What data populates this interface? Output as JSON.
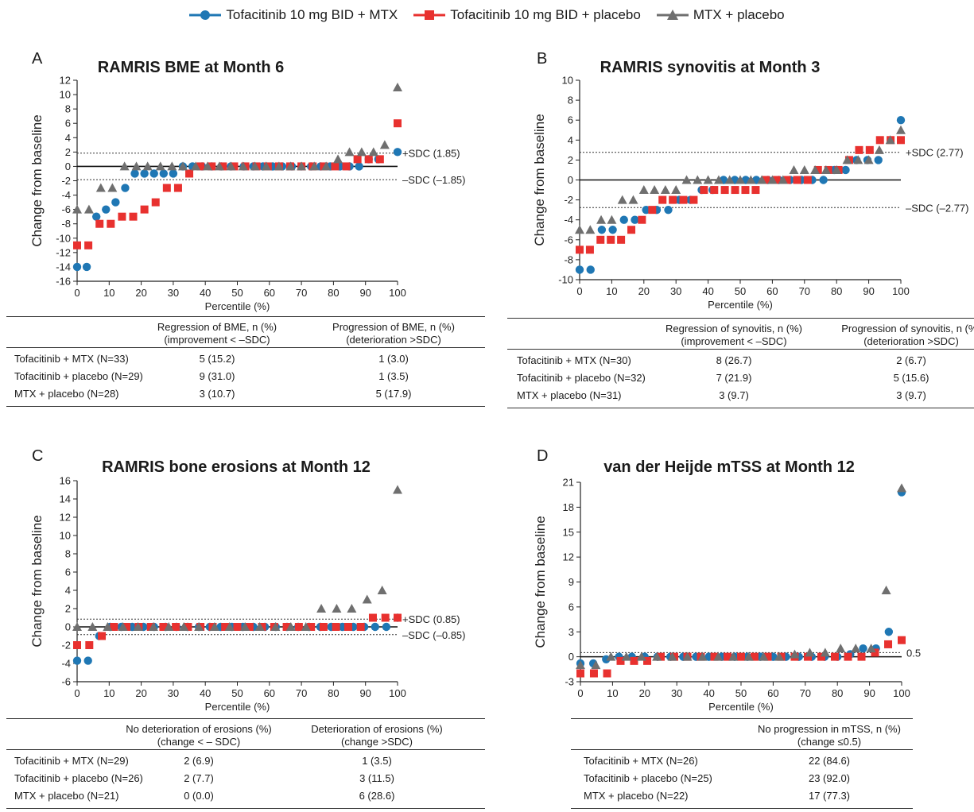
{
  "legend": [
    {
      "label": "Tofacitinib 10 mg BID + MTX",
      "color": "#1f77b4",
      "marker": "circle"
    },
    {
      "label": "Tofacitinib 10 mg BID + placebo",
      "color": "#e8312f",
      "marker": "square"
    },
    {
      "label": "MTX + placebo",
      "color": "#6f6f6f",
      "marker": "triangle"
    }
  ],
  "colors": {
    "tofa_mtx": "#1f77b4",
    "tofa_placebo": "#e8312f",
    "mtx_placebo": "#6f6f6f"
  },
  "chart_data": [
    {
      "type": "scatter",
      "panel_letter": "A",
      "title": "RAMRIS BME at Month 6",
      "xlabel": "Percentile (%)",
      "ylabel": "Change from baseline",
      "xlim": [
        0,
        100
      ],
      "ylim": [
        -16,
        12
      ],
      "xticks": [
        0,
        10,
        20,
        30,
        40,
        50,
        60,
        70,
        80,
        90,
        100
      ],
      "yticks": [
        -16,
        -14,
        -12,
        -10,
        -8,
        -6,
        -4,
        -2,
        0,
        2,
        4,
        6,
        8,
        10,
        12
      ],
      "reference_lines": [
        {
          "y": 1.85,
          "label": "+SDC (1.85)",
          "style": "dotted"
        },
        {
          "y": -1.85,
          "label": "–SDC (–1.85)",
          "style": "dotted"
        }
      ],
      "series": [
        {
          "name": "Tofacitinib 10 mg BID + MTX",
          "marker": "circle",
          "x": [
            0,
            3,
            6,
            9,
            12,
            15,
            18,
            21,
            24,
            27,
            30,
            33,
            36,
            39,
            42,
            45,
            48,
            52,
            55,
            58,
            61,
            64,
            67,
            70,
            73,
            76,
            79,
            82,
            85,
            88,
            91,
            94,
            100
          ],
          "y": [
            -14,
            -14,
            -7,
            -6,
            -5,
            -3,
            -1,
            -1,
            -1,
            -1,
            -1,
            0,
            0,
            0,
            0,
            0,
            0,
            0,
            0,
            0,
            0,
            0,
            0,
            0,
            0,
            0,
            0,
            0,
            0,
            0,
            1,
            1,
            2
          ]
        },
        {
          "name": "Tofacitinib 10 mg BID + placebo",
          "marker": "square",
          "x": [
            0,
            3.5,
            7,
            10.5,
            14,
            17.5,
            21,
            24.5,
            28,
            31.5,
            35,
            38.5,
            42,
            45.5,
            49,
            52.5,
            56,
            59.5,
            63,
            66.5,
            70,
            73.5,
            77,
            80.5,
            84,
            87.5,
            91,
            94.5,
            100
          ],
          "y": [
            -11,
            -11,
            -8,
            -8,
            -7,
            -7,
            -6,
            -5,
            -3,
            -3,
            -1,
            0,
            0,
            0,
            0,
            0,
            0,
            0,
            0,
            0,
            0,
            0,
            0,
            0,
            0,
            1,
            1,
            1,
            6
          ]
        },
        {
          "name": "MTX + placebo",
          "marker": "triangle",
          "x": [
            0,
            3.7,
            7.4,
            11,
            14.8,
            18.5,
            22,
            26,
            29.6,
            33,
            37,
            40.7,
            44.4,
            48,
            51.8,
            55.5,
            59,
            63,
            66.6,
            70,
            74,
            77.7,
            81.4,
            85,
            88.8,
            92.5,
            96,
            100
          ],
          "y": [
            -6,
            -6,
            -3,
            -3,
            0,
            0,
            0,
            0,
            0,
            0,
            0,
            0,
            0,
            0,
            0,
            0,
            0,
            0,
            0,
            0,
            0,
            0,
            1,
            2,
            2,
            2,
            3,
            11
          ]
        }
      ],
      "table": {
        "headers": [
          [
            "Regression of BME, n (%)",
            "(improvement < –SDC)"
          ],
          [
            "Progression of BME, n (%)",
            "(deterioration >SDC)"
          ]
        ],
        "rows": [
          {
            "label": "Tofacitinib + MTX (N=33)",
            "values": [
              "5 (15.2)",
              "1 (3.0)"
            ]
          },
          {
            "label": "Tofacitinib + placebo (N=29)",
            "values": [
              "9 (31.0)",
              "1 (3.5)"
            ]
          },
          {
            "label": "MTX + placebo (N=28)",
            "values": [
              "3 (10.7)",
              "5 (17.9)"
            ]
          }
        ]
      }
    },
    {
      "type": "scatter",
      "panel_letter": "B",
      "title": "RAMRIS synovitis at Month 3",
      "xlabel": "Percentile (%)",
      "ylabel": "Change from baseline",
      "xlim": [
        0,
        100
      ],
      "ylim": [
        -10,
        10
      ],
      "xticks": [
        0,
        10,
        20,
        30,
        40,
        50,
        60,
        70,
        80,
        90,
        100
      ],
      "yticks": [
        -10,
        -8,
        -6,
        -4,
        -2,
        0,
        2,
        4,
        6,
        8,
        10
      ],
      "reference_lines": [
        {
          "y": 2.77,
          "label": "+SDC (2.77)",
          "style": "dotted"
        },
        {
          "y": -2.77,
          "label": "–SDC (–2.77)",
          "style": "dotted"
        }
      ],
      "series": [
        {
          "name": "Tofacitinib 10 mg BID + MTX",
          "marker": "circle",
          "x": [
            0,
            3.4,
            6.9,
            10.3,
            13.8,
            17.2,
            20.7,
            24,
            27.6,
            31,
            34.5,
            38,
            41.4,
            44.8,
            48.3,
            51.7,
            55,
            58.6,
            62,
            65.5,
            69,
            72.4,
            75.9,
            79.3,
            82.8,
            86.2,
            89.6,
            93,
            100
          ],
          "y": [
            -9,
            -9,
            -5,
            -5,
            -4,
            -4,
            -3,
            -3,
            -3,
            -2,
            -2,
            -1,
            -1,
            0,
            0,
            0,
            0,
            0,
            0,
            0,
            0,
            0,
            0,
            1,
            1,
            2,
            2,
            2,
            6
          ]
        },
        {
          "name": "Tofacitinib 10 mg BID + placebo",
          "marker": "square",
          "x": [
            0,
            3.2,
            6.5,
            9.7,
            12.9,
            16.1,
            19.4,
            22.6,
            25.8,
            29,
            32.3,
            35.5,
            38.7,
            41.9,
            45.2,
            48.4,
            51.6,
            54.8,
            58,
            61.3,
            64.5,
            67.7,
            71,
            74.2,
            77.4,
            80.6,
            83.9,
            87,
            90.3,
            93.5,
            96.8,
            100
          ],
          "y": [
            -7,
            -7,
            -6,
            -6,
            -6,
            -5,
            -4,
            -3,
            -2,
            -2,
            -2,
            -2,
            -1,
            -1,
            -1,
            -1,
            -1,
            -1,
            0,
            0,
            0,
            0,
            0,
            1,
            1,
            1,
            2,
            3,
            3,
            4,
            4,
            4
          ]
        },
        {
          "name": "MTX + placebo",
          "marker": "triangle",
          "x": [
            0,
            3.3,
            6.7,
            10,
            13.3,
            16.7,
            20,
            23.3,
            26.7,
            30,
            33.3,
            36.7,
            40,
            43.3,
            46.7,
            50,
            53.3,
            56.7,
            60,
            63.3,
            66.7,
            70,
            73.3,
            76.7,
            80,
            83.3,
            86.7,
            90,
            93.3,
            96.7,
            100
          ],
          "y": [
            -5,
            -5,
            -4,
            -4,
            -2,
            -2,
            -1,
            -1,
            -1,
            -1,
            0,
            0,
            0,
            0,
            0,
            0,
            0,
            0,
            0,
            0,
            1,
            1,
            1,
            1,
            1,
            2,
            2,
            2,
            3,
            4,
            5
          ]
        }
      ],
      "table": {
        "headers": [
          [
            "Regression of synovitis, n (%)",
            "(improvement < –SDC)"
          ],
          [
            "Progression of synovitis, n (%)",
            "(deterioration >SDC)"
          ]
        ],
        "rows": [
          {
            "label": "Tofacitinib + MTX (N=30)",
            "values": [
              "8 (26.7)",
              "2 (6.7)"
            ]
          },
          {
            "label": "Tofacitinib + placebo (N=32)",
            "values": [
              "7 (21.9)",
              "5 (15.6)"
            ]
          },
          {
            "label": "MTX + placebo (N=31)",
            "values": [
              "3 (9.7)",
              "3 (9.7)"
            ]
          }
        ]
      }
    },
    {
      "type": "scatter",
      "panel_letter": "C",
      "title": "RAMRIS bone erosions at Month 12",
      "xlabel": "Percentile (%)",
      "ylabel": "Change from baseline",
      "xlim": [
        0,
        100
      ],
      "ylim": [
        -6,
        16
      ],
      "xticks": [
        0,
        10,
        20,
        30,
        40,
        50,
        60,
        70,
        80,
        90,
        100
      ],
      "yticks": [
        -6,
        -4,
        -2,
        0,
        2,
        4,
        6,
        8,
        10,
        12,
        14,
        16
      ],
      "reference_lines": [
        {
          "y": 0.85,
          "label": "+SDC (0.85)",
          "style": "dotted"
        },
        {
          "y": -0.85,
          "label": "–SDC (–0.85)",
          "style": "dotted"
        }
      ],
      "series": [
        {
          "name": "Tofacitinib 10 mg BID + MTX",
          "marker": "circle",
          "x": [
            0,
            3.4,
            6.9,
            10.3,
            13.8,
            17.2,
            20.7,
            24,
            27.6,
            31,
            34.5,
            38,
            41.4,
            44.8,
            48.3,
            51.7,
            55,
            58.6,
            62,
            65.5,
            69,
            72.4,
            75.9,
            79.3,
            82.8,
            86.2,
            89.6,
            93,
            96.5,
            100
          ],
          "y": [
            -3.7,
            -3.7,
            -1,
            0,
            0,
            0,
            0,
            0,
            0,
            0,
            0,
            0,
            0,
            0,
            0,
            0,
            0,
            0,
            0,
            0,
            0,
            0,
            0,
            0,
            0,
            0,
            0,
            0,
            0,
            1
          ]
        },
        {
          "name": "Tofacitinib 10 mg BID + placebo",
          "marker": "square",
          "x": [
            0,
            3.8,
            7.7,
            11.5,
            15.4,
            19.2,
            23,
            26.9,
            30.8,
            34.6,
            38.5,
            42.3,
            46.2,
            50,
            53.8,
            57.7,
            61.5,
            65.4,
            69.2,
            73,
            76.9,
            80.8,
            84.6,
            88.5,
            92.3,
            96.2,
            100
          ],
          "y": [
            -2,
            -2,
            -1,
            0,
            0,
            0,
            0,
            0,
            0,
            0,
            0,
            0,
            0,
            0,
            0,
            0,
            0,
            0,
            0,
            0,
            0,
            0,
            0,
            0,
            1,
            1,
            1
          ]
        },
        {
          "name": "MTX + placebo",
          "marker": "triangle",
          "x": [
            0,
            4.8,
            9.5,
            14.3,
            19,
            23.8,
            28.6,
            33.3,
            38,
            42.9,
            47.6,
            52.4,
            57,
            61.9,
            66.7,
            71.4,
            76.2,
            81,
            85.7,
            90.5,
            95.2,
            100
          ],
          "y": [
            0,
            0,
            0,
            0,
            0,
            0,
            0,
            0,
            0,
            0,
            0,
            0,
            0,
            0,
            0,
            0,
            2,
            2,
            2,
            3,
            4,
            15
          ]
        }
      ],
      "table": {
        "headers": [
          [
            "No deterioration of erosions (%)",
            "(change < – SDC)"
          ],
          [
            "Deterioration of erosions (%)",
            "(change >SDC)"
          ]
        ],
        "rows": [
          {
            "label": "Tofacitinib + MTX (N=29)",
            "values": [
              "2 (6.9)",
              "1 (3.5)"
            ]
          },
          {
            "label": "Tofacitinib + placebo (N=26)",
            "values": [
              "2 (7.7)",
              "3 (11.5)"
            ]
          },
          {
            "label": "MTX + placebo (N=21)",
            "values": [
              "0 (0.0)",
              "6 (28.6)"
            ]
          }
        ]
      }
    },
    {
      "type": "scatter",
      "panel_letter": "D",
      "title": "van der Heijde mTSS at Month 12",
      "xlabel": "Percentile (%)",
      "ylabel": "Change from baseline",
      "xlim": [
        0,
        100
      ],
      "ylim": [
        -3,
        21
      ],
      "xticks": [
        0,
        10,
        20,
        30,
        40,
        50,
        60,
        70,
        80,
        90,
        100
      ],
      "yticks": [
        -3,
        0,
        3,
        6,
        9,
        12,
        15,
        18,
        21
      ],
      "reference_lines": [
        {
          "y": 0.5,
          "label": "0.5",
          "style": "dotted"
        }
      ],
      "series": [
        {
          "name": "Tofacitinib 10 mg BID + MTX",
          "marker": "circle",
          "x": [
            0,
            4,
            8,
            12,
            16,
            20,
            24,
            28,
            32,
            36,
            40,
            44,
            48,
            52,
            56,
            60,
            64,
            68,
            72,
            76,
            80,
            84,
            88,
            92,
            96,
            100
          ],
          "y": [
            -0.8,
            -0.8,
            -0.3,
            0,
            0,
            0,
            0,
            0,
            0,
            0,
            0,
            0,
            0,
            0,
            0,
            0,
            0,
            0,
            0,
            0,
            0,
            0.3,
            1,
            1,
            3,
            19.8
          ]
        },
        {
          "name": "Tofacitinib 10 mg BID + placebo",
          "marker": "square",
          "x": [
            0,
            4.2,
            8.3,
            12.5,
            16.7,
            20.8,
            25,
            29.2,
            33.3,
            37.5,
            41.7,
            45.8,
            50,
            54.2,
            58.3,
            62.5,
            66.7,
            70.8,
            75,
            79.2,
            83.3,
            87.5,
            91.7,
            95.8,
            100
          ],
          "y": [
            -2,
            -2,
            -2,
            -0.5,
            -0.5,
            -0.5,
            0,
            0,
            0,
            0,
            0,
            0,
            0,
            0,
            0,
            0,
            0,
            0,
            0,
            0,
            0,
            0,
            0.5,
            1.5,
            2
          ]
        },
        {
          "name": "MTX + placebo",
          "marker": "triangle",
          "x": [
            0,
            4.8,
            9.5,
            14.3,
            19,
            23.8,
            28.6,
            33.3,
            38,
            42.9,
            47.6,
            52.4,
            57,
            61.9,
            66.7,
            71.4,
            76.2,
            81,
            85.7,
            90.5,
            95.2,
            100
          ],
          "y": [
            -1,
            -1,
            0,
            0,
            0,
            0,
            0,
            0,
            0,
            0,
            0,
            0,
            0,
            0,
            0.3,
            0.5,
            0.5,
            1,
            1,
            1,
            8,
            20.3
          ]
        }
      ],
      "table": {
        "headers": [
          [
            "No progression in mTSS, n (%)",
            "(change ≤0.5)"
          ]
        ],
        "rows": [
          {
            "label": "Tofacitinib + MTX (N=26)",
            "values": [
              "22 (84.6)"
            ]
          },
          {
            "label": "Tofacitinib + placebo (N=25)",
            "values": [
              "23 (92.0)"
            ]
          },
          {
            "label": "MTX + placebo (N=22)",
            "values": [
              "17 (77.3)"
            ]
          }
        ]
      }
    }
  ]
}
